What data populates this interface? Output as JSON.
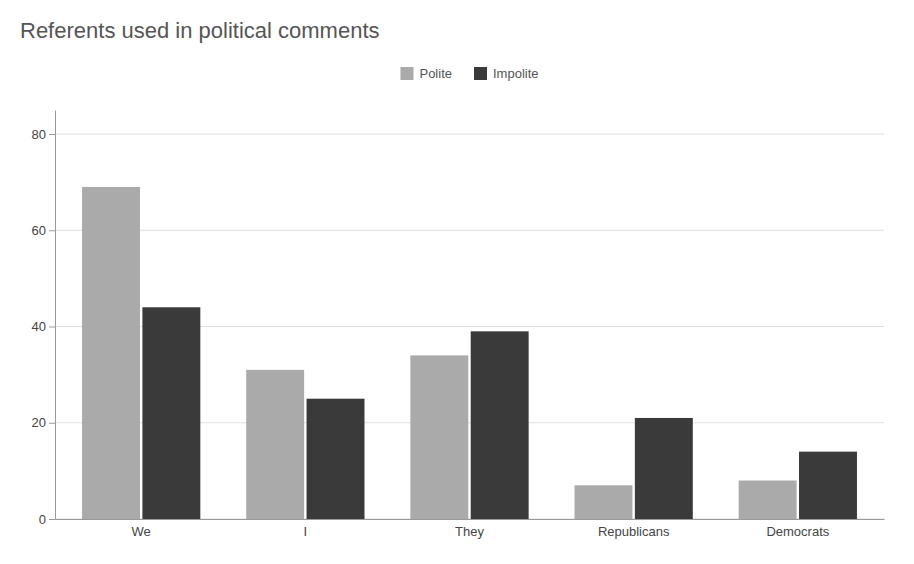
{
  "chart_data": {
    "type": "bar",
    "title": "Referents used in political comments",
    "categories": [
      "We",
      "I",
      "They",
      "Republicans",
      "Democrats"
    ],
    "series": [
      {
        "name": "Polite",
        "color": "#aaaaaa",
        "values": [
          69,
          31,
          34,
          7,
          8
        ]
      },
      {
        "name": "Impolite",
        "color": "#3a3a3a",
        "values": [
          44,
          25,
          39,
          21,
          14
        ]
      }
    ],
    "ylim": [
      0,
      85
    ],
    "yticks": [
      0,
      20,
      40,
      60,
      80
    ],
    "grid": true,
    "legend": "top"
  }
}
